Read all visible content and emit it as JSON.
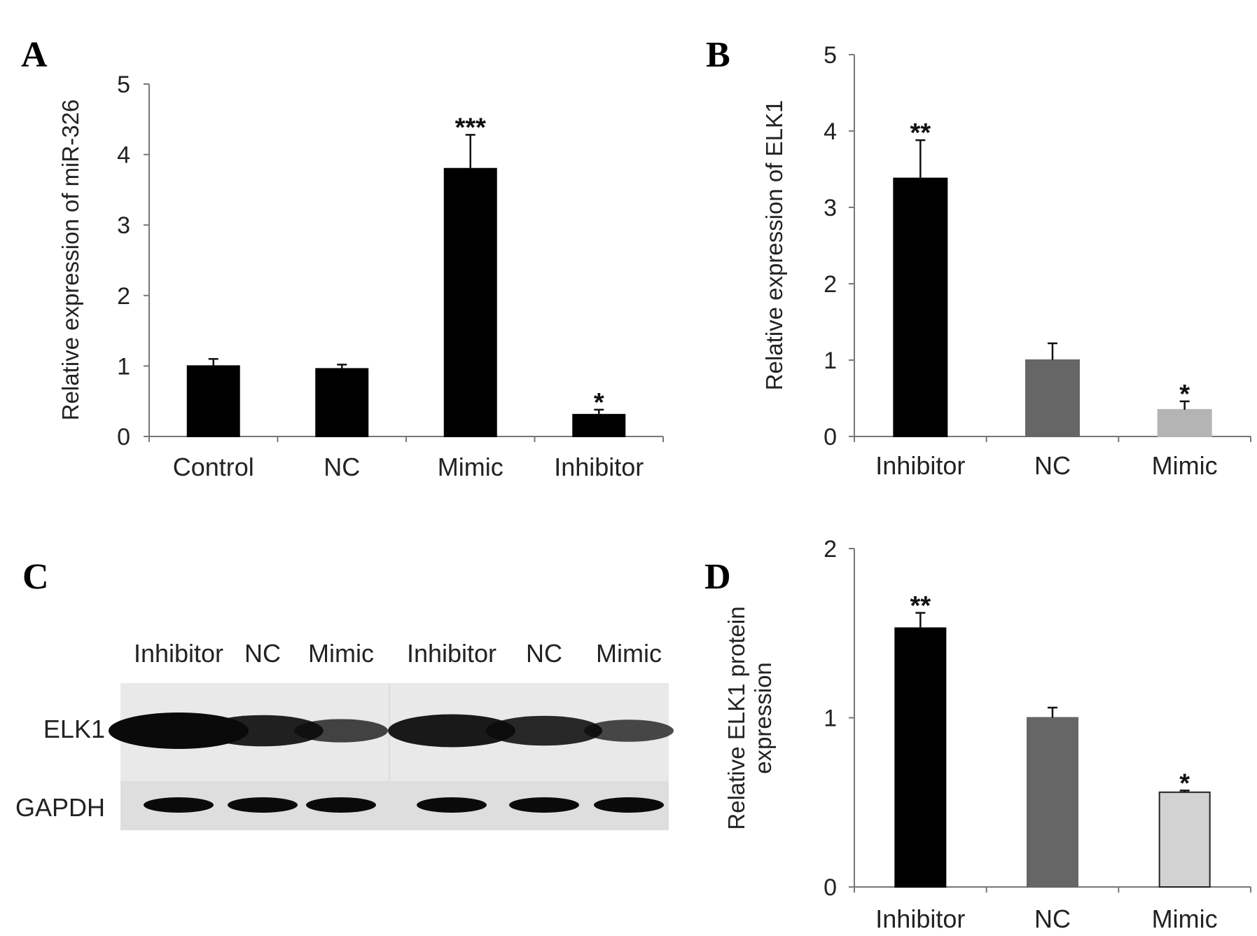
{
  "chart_data": [
    {
      "panel": "A",
      "type": "bar",
      "categories": [
        "Control",
        "NC",
        "Mimic",
        "Inhibitor"
      ],
      "values": [
        1.0,
        0.96,
        3.8,
        0.31
      ],
      "errors": [
        0.1,
        0.06,
        0.48,
        0.07
      ],
      "significance": [
        "",
        "",
        "***",
        "*"
      ],
      "colors": [
        "#000000",
        "#000000",
        "#000000",
        "#000000"
      ],
      "ylabel": "Relative expression of miR-326",
      "ylim": [
        0,
        5
      ],
      "yticks": [
        0,
        1,
        2,
        3,
        4,
        5
      ],
      "grid": false
    },
    {
      "panel": "B",
      "type": "bar",
      "categories": [
        "Inhibitor",
        "NC",
        "Mimic"
      ],
      "values": [
        3.38,
        1.0,
        0.35
      ],
      "errors": [
        0.5,
        0.22,
        0.11
      ],
      "significance": [
        "**",
        "",
        "*"
      ],
      "colors": [
        "#000000",
        "#666666",
        "#b4b4b4"
      ],
      "ylabel": "Relative expression of ELK1",
      "ylim": [
        0,
        5
      ],
      "yticks": [
        0,
        1,
        2,
        3,
        4,
        5
      ],
      "grid": false
    },
    {
      "panel": "D",
      "type": "bar",
      "categories": [
        "Inhibitor",
        "NC",
        "Mimic"
      ],
      "values": [
        1.53,
        1.0,
        0.56
      ],
      "errors": [
        0.09,
        0.06,
        0.01
      ],
      "significance": [
        "**",
        "",
        "*"
      ],
      "colors": [
        "#000000",
        "#666666",
        "#d2d2d2"
      ],
      "ylabel": [
        "Relative ELK1 protein",
        "expression"
      ],
      "ylim": [
        0,
        2
      ],
      "yticks": [
        0,
        1,
        2
      ],
      "grid": false
    }
  ],
  "panel_labels": {
    "a": "A",
    "b": "B",
    "c": "C",
    "d": "D"
  },
  "blot": {
    "lanes": [
      "Inhibitor",
      "NC",
      "Mimic",
      "Inhibitor",
      "NC",
      "Mimic"
    ],
    "rows": [
      "ELK1",
      "GAPDH"
    ],
    "elk1_intensity": [
      1.0,
      0.78,
      0.45,
      0.85,
      0.72,
      0.4
    ]
  }
}
